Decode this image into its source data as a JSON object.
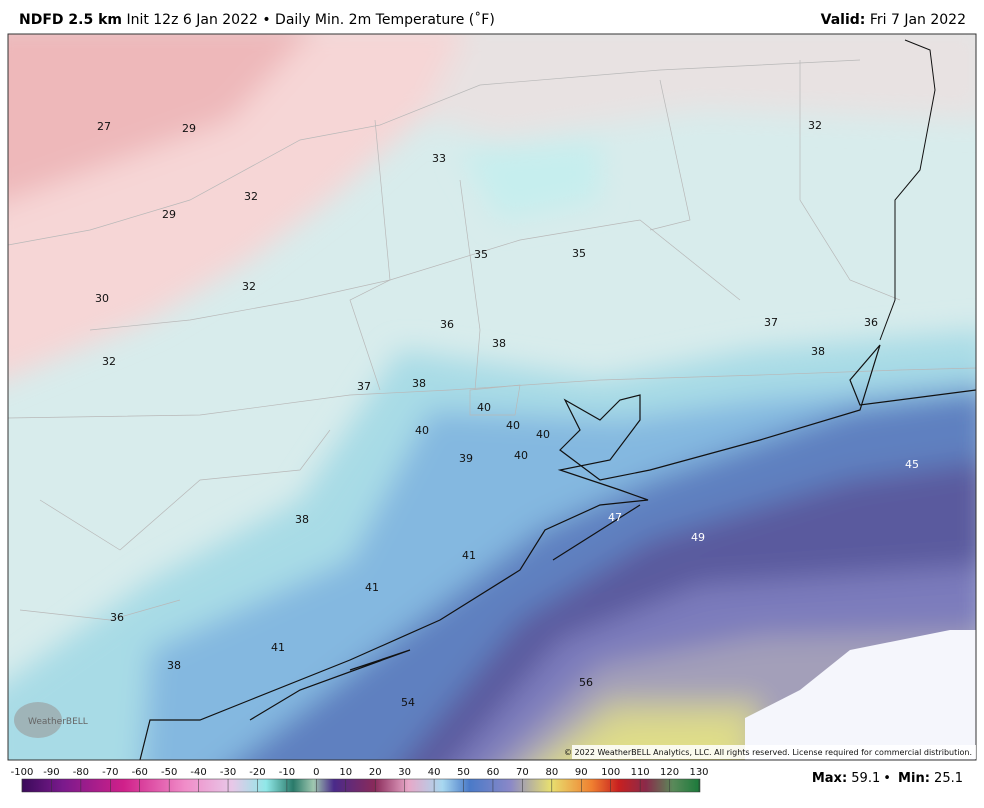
{
  "header": {
    "model": "NDFD 2.5 km",
    "description": "Init 12z 6 Jan 2022 • Daily Min. 2m Temperature (˚F)",
    "valid_label": "Valid:",
    "valid_date": "Fri 7 Jan 2022"
  },
  "map": {
    "labels": [
      27,
      29,
      33,
      32,
      32,
      29,
      35,
      35,
      30,
      32,
      36,
      38,
      37,
      36,
      38,
      32,
      37,
      38,
      40,
      40,
      40,
      40,
      39,
      40,
      45,
      47,
      49,
      38,
      41,
      41,
      36,
      41,
      38,
      56,
      54
    ],
    "copyright": "© 2022 WeatherBELL Analytics, LLC. All rights reserved. License required for commercial distribution.",
    "logo": "WeatherBELL"
  },
  "colorbar": {
    "ticks": [
      -100,
      -90,
      -80,
      -70,
      -60,
      -50,
      -40,
      -30,
      -20,
      -10,
      0,
      10,
      20,
      30,
      40,
      50,
      60,
      70,
      80,
      90,
      100,
      110,
      120,
      130
    ]
  },
  "stats": {
    "max_label": "Max:",
    "max": 59.1,
    "separator": "•",
    "min_label": "Min:",
    "min": 25.1
  }
}
